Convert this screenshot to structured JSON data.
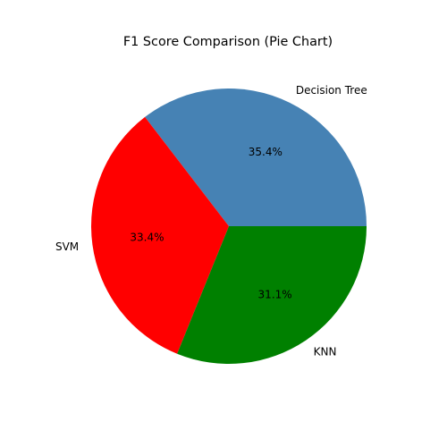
{
  "chart_data": {
    "type": "pie",
    "title": "F1 Score Comparison (Pie Chart)",
    "labels": [
      "Decision Tree",
      "SVM",
      "KNN"
    ],
    "values": [
      35.4,
      33.4,
      31.1
    ],
    "percent_labels": [
      "35.4%",
      "33.4%",
      "31.1%"
    ],
    "colors": [
      "#4682b4",
      "#ff0000",
      "#008000"
    ],
    "start_angle_deg": 0,
    "direction": "counterclockwise"
  }
}
